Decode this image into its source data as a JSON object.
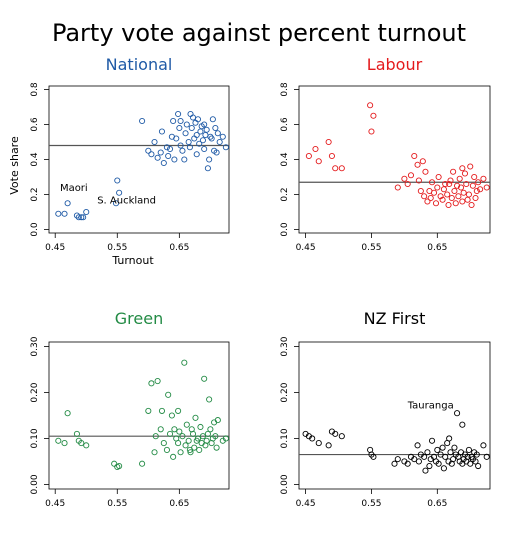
{
  "title": "Party vote against percent turnout",
  "chart_data": [
    {
      "type": "scatter",
      "title": "National",
      "title_color": "#1f5aa6",
      "point_color": "#1f5aa6",
      "xlabel": "Turnout",
      "ylabel": "Vote share",
      "xlim": [
        0.44,
        0.73
      ],
      "ylim": [
        -0.02,
        0.82
      ],
      "xticks": [
        0.45,
        0.55,
        0.65
      ],
      "xtick_labels": [
        "0.45",
        "0.55",
        "0.65"
      ],
      "yticks": [
        0.0,
        0.2,
        0.4,
        0.6,
        0.8
      ],
      "ytick_labels": [
        "0.0",
        "0.2",
        "0.4",
        "0.6",
        "0.8"
      ],
      "hline": 0.48,
      "annotations": [
        {
          "text": "Maori",
          "x": 0.48,
          "y": 0.22
        },
        {
          "text": "S. Auckland",
          "x": 0.565,
          "y": 0.15
        }
      ],
      "points": [
        [
          0.455,
          0.09
        ],
        [
          0.465,
          0.09
        ],
        [
          0.47,
          0.15
        ],
        [
          0.485,
          0.08
        ],
        [
          0.488,
          0.07
        ],
        [
          0.492,
          0.07
        ],
        [
          0.495,
          0.07
        ],
        [
          0.5,
          0.1
        ],
        [
          0.55,
          0.28
        ],
        [
          0.553,
          0.21
        ],
        [
          0.548,
          0.15
        ],
        [
          0.59,
          0.62
        ],
        [
          0.6,
          0.45
        ],
        [
          0.605,
          0.43
        ],
        [
          0.61,
          0.5
        ],
        [
          0.615,
          0.41
        ],
        [
          0.62,
          0.44
        ],
        [
          0.622,
          0.56
        ],
        [
          0.625,
          0.38
        ],
        [
          0.63,
          0.47
        ],
        [
          0.632,
          0.42
        ],
        [
          0.635,
          0.46
        ],
        [
          0.638,
          0.53
        ],
        [
          0.64,
          0.62
        ],
        [
          0.642,
          0.4
        ],
        [
          0.645,
          0.52
        ],
        [
          0.648,
          0.66
        ],
        [
          0.65,
          0.58
        ],
        [
          0.652,
          0.48
        ],
        [
          0.655,
          0.45
        ],
        [
          0.658,
          0.4
        ],
        [
          0.66,
          0.55
        ],
        [
          0.662,
          0.6
        ],
        [
          0.665,
          0.5
        ],
        [
          0.667,
          0.47
        ],
        [
          0.67,
          0.58
        ],
        [
          0.672,
          0.64
        ],
        [
          0.674,
          0.52
        ],
        [
          0.676,
          0.61
        ],
        [
          0.678,
          0.43
        ],
        [
          0.68,
          0.63
        ],
        [
          0.682,
          0.49
        ],
        [
          0.684,
          0.56
        ],
        [
          0.686,
          0.59
        ],
        [
          0.688,
          0.51
        ],
        [
          0.69,
          0.46
        ],
        [
          0.692,
          0.54
        ],
        [
          0.694,
          0.57
        ],
        [
          0.696,
          0.35
        ],
        [
          0.698,
          0.4
        ],
        [
          0.7,
          0.53
        ],
        [
          0.702,
          0.52
        ],
        [
          0.704,
          0.63
        ],
        [
          0.706,
          0.45
        ],
        [
          0.708,
          0.58
        ],
        [
          0.71,
          0.44
        ],
        [
          0.712,
          0.55
        ],
        [
          0.715,
          0.5
        ],
        [
          0.72,
          0.53
        ],
        [
          0.725,
          0.47
        ],
        [
          0.668,
          0.66
        ],
        [
          0.652,
          0.62
        ],
        [
          0.678,
          0.54
        ],
        [
          0.69,
          0.6
        ]
      ]
    },
    {
      "type": "scatter",
      "title": "Labour",
      "title_color": "#e41a1c",
      "point_color": "#e41a1c",
      "xlim": [
        0.44,
        0.73
      ],
      "ylim": [
        -0.02,
        0.82
      ],
      "xticks": [
        0.45,
        0.55,
        0.65
      ],
      "xtick_labels": [
        "0.45",
        "0.55",
        "0.65"
      ],
      "yticks": [
        0.0,
        0.2,
        0.4,
        0.6,
        0.8
      ],
      "ytick_labels": [
        "0.0",
        "0.2",
        "0.4",
        "0.6",
        "0.8"
      ],
      "hline": 0.27,
      "annotations": [],
      "points": [
        [
          0.455,
          0.42
        ],
        [
          0.465,
          0.46
        ],
        [
          0.47,
          0.39
        ],
        [
          0.485,
          0.5
        ],
        [
          0.49,
          0.42
        ],
        [
          0.495,
          0.35
        ],
        [
          0.505,
          0.35
        ],
        [
          0.548,
          0.71
        ],
        [
          0.553,
          0.65
        ],
        [
          0.55,
          0.56
        ],
        [
          0.59,
          0.24
        ],
        [
          0.6,
          0.29
        ],
        [
          0.605,
          0.26
        ],
        [
          0.61,
          0.31
        ],
        [
          0.615,
          0.42
        ],
        [
          0.62,
          0.37
        ],
        [
          0.622,
          0.28
        ],
        [
          0.625,
          0.22
        ],
        [
          0.63,
          0.19
        ],
        [
          0.632,
          0.33
        ],
        [
          0.635,
          0.16
        ],
        [
          0.638,
          0.22
        ],
        [
          0.64,
          0.18
        ],
        [
          0.642,
          0.27
        ],
        [
          0.645,
          0.21
        ],
        [
          0.648,
          0.15
        ],
        [
          0.65,
          0.24
        ],
        [
          0.652,
          0.3
        ],
        [
          0.655,
          0.19
        ],
        [
          0.658,
          0.17
        ],
        [
          0.66,
          0.23
        ],
        [
          0.662,
          0.26
        ],
        [
          0.665,
          0.2
        ],
        [
          0.667,
          0.14
        ],
        [
          0.67,
          0.28
        ],
        [
          0.672,
          0.18
        ],
        [
          0.674,
          0.33
        ],
        [
          0.676,
          0.22
        ],
        [
          0.678,
          0.15
        ],
        [
          0.68,
          0.25
        ],
        [
          0.682,
          0.19
        ],
        [
          0.684,
          0.29
        ],
        [
          0.686,
          0.24
        ],
        [
          0.688,
          0.16
        ],
        [
          0.69,
          0.21
        ],
        [
          0.692,
          0.32
        ],
        [
          0.694,
          0.26
        ],
        [
          0.696,
          0.17
        ],
        [
          0.698,
          0.2
        ],
        [
          0.7,
          0.36
        ],
        [
          0.702,
          0.14
        ],
        [
          0.704,
          0.25
        ],
        [
          0.706,
          0.3
        ],
        [
          0.708,
          0.18
        ],
        [
          0.71,
          0.22
        ],
        [
          0.712,
          0.27
        ],
        [
          0.715,
          0.23
        ],
        [
          0.72,
          0.29
        ],
        [
          0.725,
          0.24
        ],
        [
          0.628,
          0.39
        ],
        [
          0.668,
          0.26
        ],
        [
          0.688,
          0.35
        ]
      ]
    },
    {
      "type": "scatter",
      "title": "Green",
      "title_color": "#238b45",
      "point_color": "#238b45",
      "xlim": [
        0.44,
        0.73
      ],
      "ylim": [
        -0.01,
        0.31
      ],
      "xticks": [
        0.45,
        0.55,
        0.65
      ],
      "xtick_labels": [
        "0.45",
        "0.55",
        "0.65"
      ],
      "yticks": [
        0.0,
        0.1,
        0.2,
        0.3
      ],
      "ytick_labels": [
        "0.00",
        "0.10",
        "0.20",
        "0.30"
      ],
      "hline": 0.105,
      "annotations": [],
      "points": [
        [
          0.455,
          0.095
        ],
        [
          0.465,
          0.09
        ],
        [
          0.47,
          0.155
        ],
        [
          0.485,
          0.11
        ],
        [
          0.488,
          0.095
        ],
        [
          0.492,
          0.09
        ],
        [
          0.5,
          0.085
        ],
        [
          0.545,
          0.045
        ],
        [
          0.55,
          0.038
        ],
        [
          0.553,
          0.04
        ],
        [
          0.59,
          0.045
        ],
        [
          0.6,
          0.16
        ],
        [
          0.605,
          0.22
        ],
        [
          0.61,
          0.07
        ],
        [
          0.612,
          0.105
        ],
        [
          0.615,
          0.225
        ],
        [
          0.62,
          0.12
        ],
        [
          0.622,
          0.16
        ],
        [
          0.625,
          0.09
        ],
        [
          0.63,
          0.075
        ],
        [
          0.632,
          0.195
        ],
        [
          0.635,
          0.11
        ],
        [
          0.638,
          0.15
        ],
        [
          0.64,
          0.06
        ],
        [
          0.642,
          0.12
        ],
        [
          0.645,
          0.1
        ],
        [
          0.648,
          0.09
        ],
        [
          0.65,
          0.115
        ],
        [
          0.652,
          0.07
        ],
        [
          0.655,
          0.105
        ],
        [
          0.658,
          0.265
        ],
        [
          0.66,
          0.085
        ],
        [
          0.662,
          0.13
        ],
        [
          0.665,
          0.095
        ],
        [
          0.667,
          0.075
        ],
        [
          0.67,
          0.12
        ],
        [
          0.672,
          0.11
        ],
        [
          0.674,
          0.08
        ],
        [
          0.676,
          0.145
        ],
        [
          0.678,
          0.095
        ],
        [
          0.68,
          0.1
        ],
        [
          0.682,
          0.075
        ],
        [
          0.684,
          0.125
        ],
        [
          0.686,
          0.09
        ],
        [
          0.688,
          0.105
        ],
        [
          0.69,
          0.23
        ],
        [
          0.692,
          0.085
        ],
        [
          0.694,
          0.095
        ],
        [
          0.696,
          0.11
        ],
        [
          0.698,
          0.185
        ],
        [
          0.7,
          0.12
        ],
        [
          0.702,
          0.09
        ],
        [
          0.704,
          0.1
        ],
        [
          0.706,
          0.135
        ],
        [
          0.708,
          0.105
        ],
        [
          0.71,
          0.08
        ],
        [
          0.712,
          0.14
        ],
        [
          0.72,
          0.095
        ],
        [
          0.725,
          0.1
        ],
        [
          0.668,
          0.07
        ],
        [
          0.648,
          0.16
        ]
      ]
    },
    {
      "type": "scatter",
      "title": "NZ First",
      "title_color": "#000000",
      "point_color": "#000000",
      "xlim": [
        0.44,
        0.73
      ],
      "ylim": [
        -0.01,
        0.31
      ],
      "xticks": [
        0.45,
        0.55,
        0.65
      ],
      "xtick_labels": [
        "0.45",
        "0.55",
        "0.65"
      ],
      "yticks": [
        0.0,
        0.1,
        0.2,
        0.3
      ],
      "ytick_labels": [
        "0.00",
        "0.10",
        "0.20",
        "0.30"
      ],
      "hline": 0.065,
      "annotations": [
        {
          "text": "Tauranga",
          "x": 0.64,
          "y": 0.165
        }
      ],
      "points": [
        [
          0.45,
          0.11
        ],
        [
          0.455,
          0.105
        ],
        [
          0.46,
          0.1
        ],
        [
          0.47,
          0.09
        ],
        [
          0.485,
          0.085
        ],
        [
          0.49,
          0.115
        ],
        [
          0.495,
          0.11
        ],
        [
          0.505,
          0.105
        ],
        [
          0.548,
          0.075
        ],
        [
          0.55,
          0.065
        ],
        [
          0.553,
          0.06
        ],
        [
          0.585,
          0.045
        ],
        [
          0.59,
          0.055
        ],
        [
          0.6,
          0.05
        ],
        [
          0.605,
          0.045
        ],
        [
          0.61,
          0.06
        ],
        [
          0.615,
          0.055
        ],
        [
          0.62,
          0.085
        ],
        [
          0.622,
          0.05
        ],
        [
          0.625,
          0.065
        ],
        [
          0.63,
          0.06
        ],
        [
          0.632,
          0.03
        ],
        [
          0.635,
          0.07
        ],
        [
          0.638,
          0.04
        ],
        [
          0.64,
          0.055
        ],
        [
          0.642,
          0.095
        ],
        [
          0.645,
          0.06
        ],
        [
          0.648,
          0.05
        ],
        [
          0.65,
          0.075
        ],
        [
          0.652,
          0.045
        ],
        [
          0.655,
          0.065
        ],
        [
          0.658,
          0.08
        ],
        [
          0.66,
          0.035
        ],
        [
          0.662,
          0.06
        ],
        [
          0.665,
          0.09
        ],
        [
          0.667,
          0.05
        ],
        [
          0.67,
          0.07
        ],
        [
          0.672,
          0.045
        ],
        [
          0.674,
          0.055
        ],
        [
          0.676,
          0.08
        ],
        [
          0.678,
          0.065
        ],
        [
          0.68,
          0.155
        ],
        [
          0.682,
          0.06
        ],
        [
          0.684,
          0.05
        ],
        [
          0.686,
          0.07
        ],
        [
          0.688,
          0.045
        ],
        [
          0.69,
          0.055
        ],
        [
          0.692,
          0.065
        ],
        [
          0.694,
          0.05
        ],
        [
          0.696,
          0.06
        ],
        [
          0.698,
          0.075
        ],
        [
          0.7,
          0.045
        ],
        [
          0.702,
          0.06
        ],
        [
          0.704,
          0.055
        ],
        [
          0.706,
          0.07
        ],
        [
          0.708,
          0.05
        ],
        [
          0.71,
          0.065
        ],
        [
          0.712,
          0.04
        ],
        [
          0.72,
          0.085
        ],
        [
          0.725,
          0.06
        ],
        [
          0.688,
          0.13
        ],
        [
          0.668,
          0.1
        ]
      ]
    }
  ]
}
